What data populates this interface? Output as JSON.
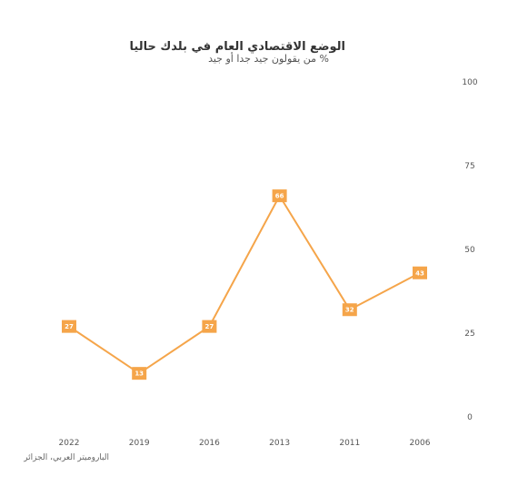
{
  "chart_data": {
    "type": "line",
    "title": "الوضع الاقتصادي العام في بلدك حاليا",
    "subtitle": "% من يقولون جيد جدا أو جيد",
    "source": "الباروميتر العربي، الجزائر",
    "categories": [
      "2022",
      "2019",
      "2016",
      "2013",
      "2011",
      "2006"
    ],
    "series": [
      {
        "values": [
          27,
          13,
          27,
          66,
          32,
          43
        ],
        "color": "#f5a54a"
      }
    ],
    "ylim": [
      0,
      100
    ],
    "yticks": [
      "0",
      "25",
      "50",
      "75",
      "100"
    ],
    "y_axis_side": "right",
    "grid": false,
    "legend": "none"
  }
}
